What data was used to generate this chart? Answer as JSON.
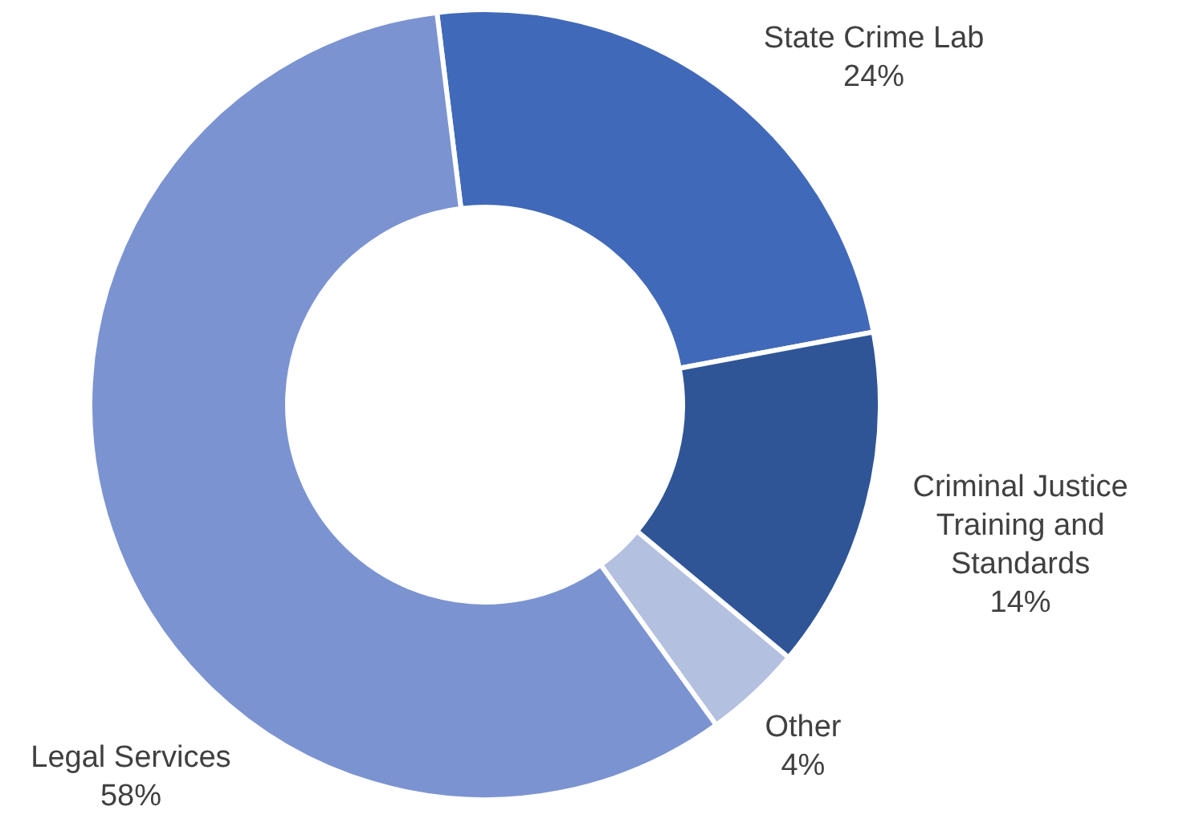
{
  "chart_data": {
    "type": "donut",
    "categories": [
      "State Crime Lab",
      "Criminal Justice Training and Standards",
      "Other",
      "Legal Services"
    ],
    "values": [
      24,
      14,
      4,
      58
    ],
    "colors": [
      "#4169b9",
      "#2f5597",
      "#b4c0e0",
      "#7b93d0"
    ],
    "value_labels": [
      "24%",
      "14%",
      "4%",
      "58%"
    ]
  }
}
